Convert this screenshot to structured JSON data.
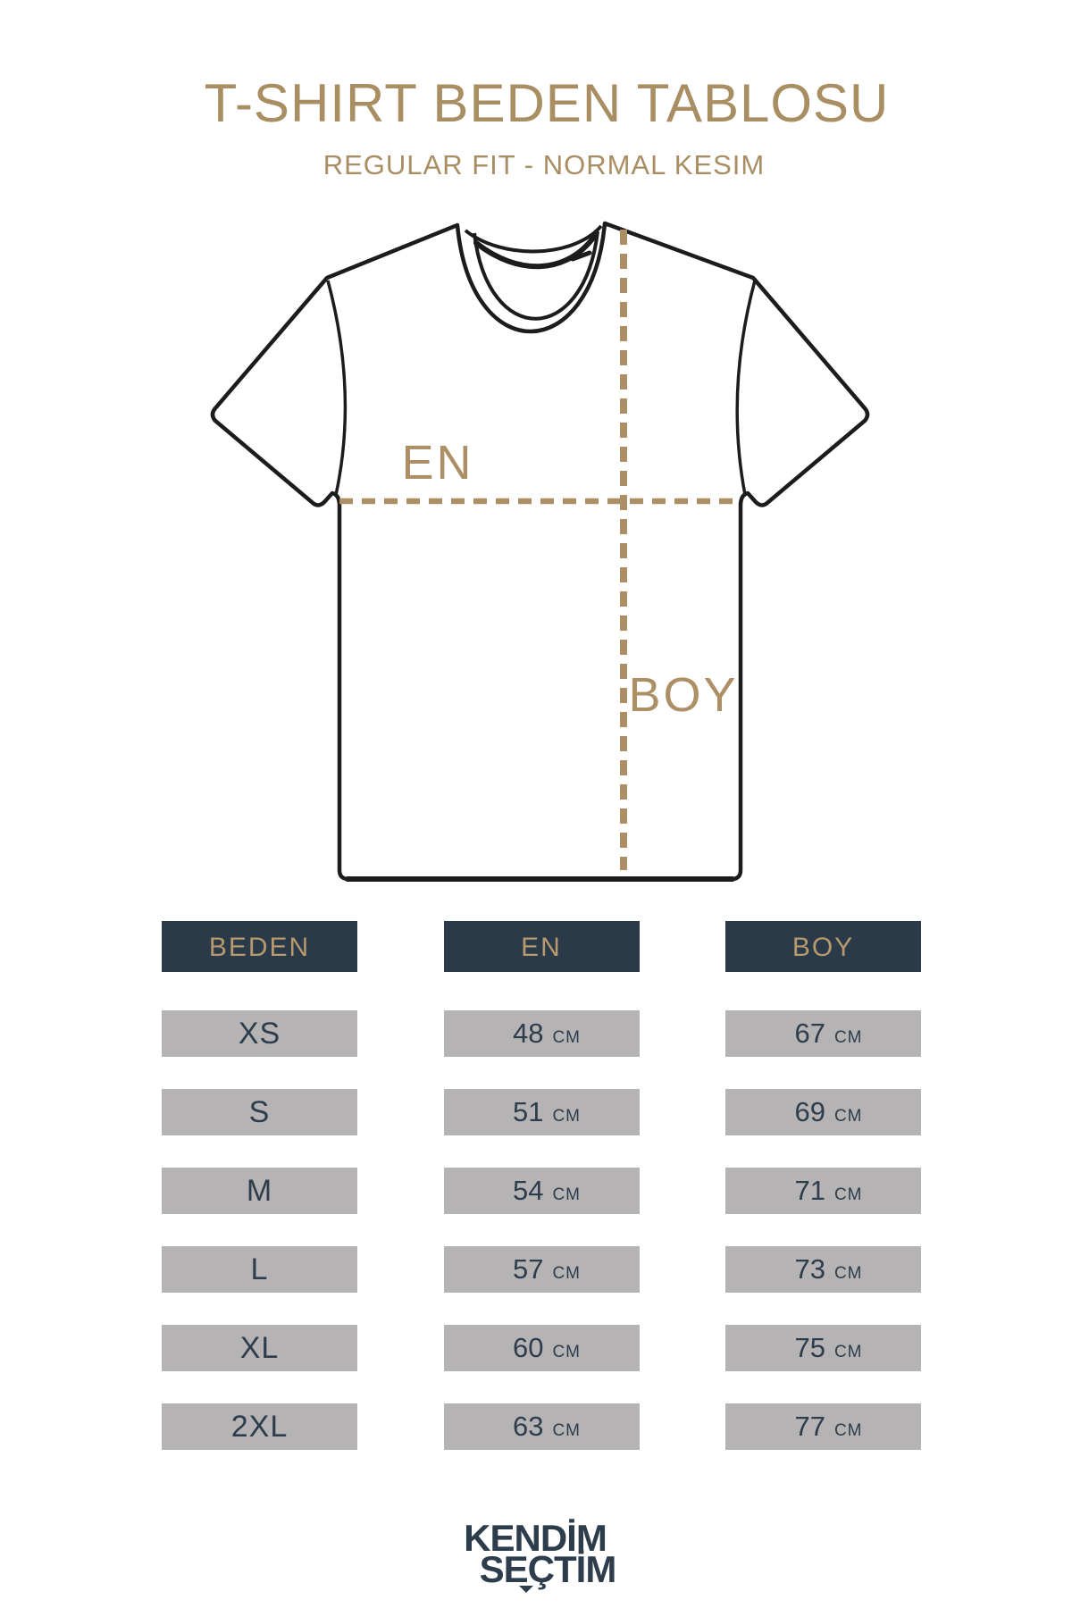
{
  "page": {
    "title": "T-SHIRT BEDEN TABLOSU",
    "subtitle": "REGULAR FIT - NORMAL KESIM"
  },
  "diagram": {
    "width_label": "EN",
    "length_label": "BOY"
  },
  "table": {
    "headers": [
      "BEDEN",
      "EN",
      "BOY"
    ],
    "unit": "CM",
    "rows": [
      {
        "size": "XS",
        "en": "48",
        "boy": "67"
      },
      {
        "size": "S",
        "en": "51",
        "boy": "69"
      },
      {
        "size": "M",
        "en": "54",
        "boy": "71"
      },
      {
        "size": "L",
        "en": "57",
        "boy": "73"
      },
      {
        "size": "XL",
        "en": "60",
        "boy": "75"
      },
      {
        "size": "2XL",
        "en": "63",
        "boy": "77"
      }
    ]
  },
  "brand": {
    "line1": "KENDİM",
    "line2": "SEÇTİM"
  },
  "colors": {
    "tan": "#AC8F64",
    "tan-title": "#A88E62",
    "navy": "#2B3A49",
    "header-text": "#B69A6D",
    "gray": "#B5B3B4",
    "text-navy": "#2E3D4C",
    "ink": "#1C1C1C"
  }
}
